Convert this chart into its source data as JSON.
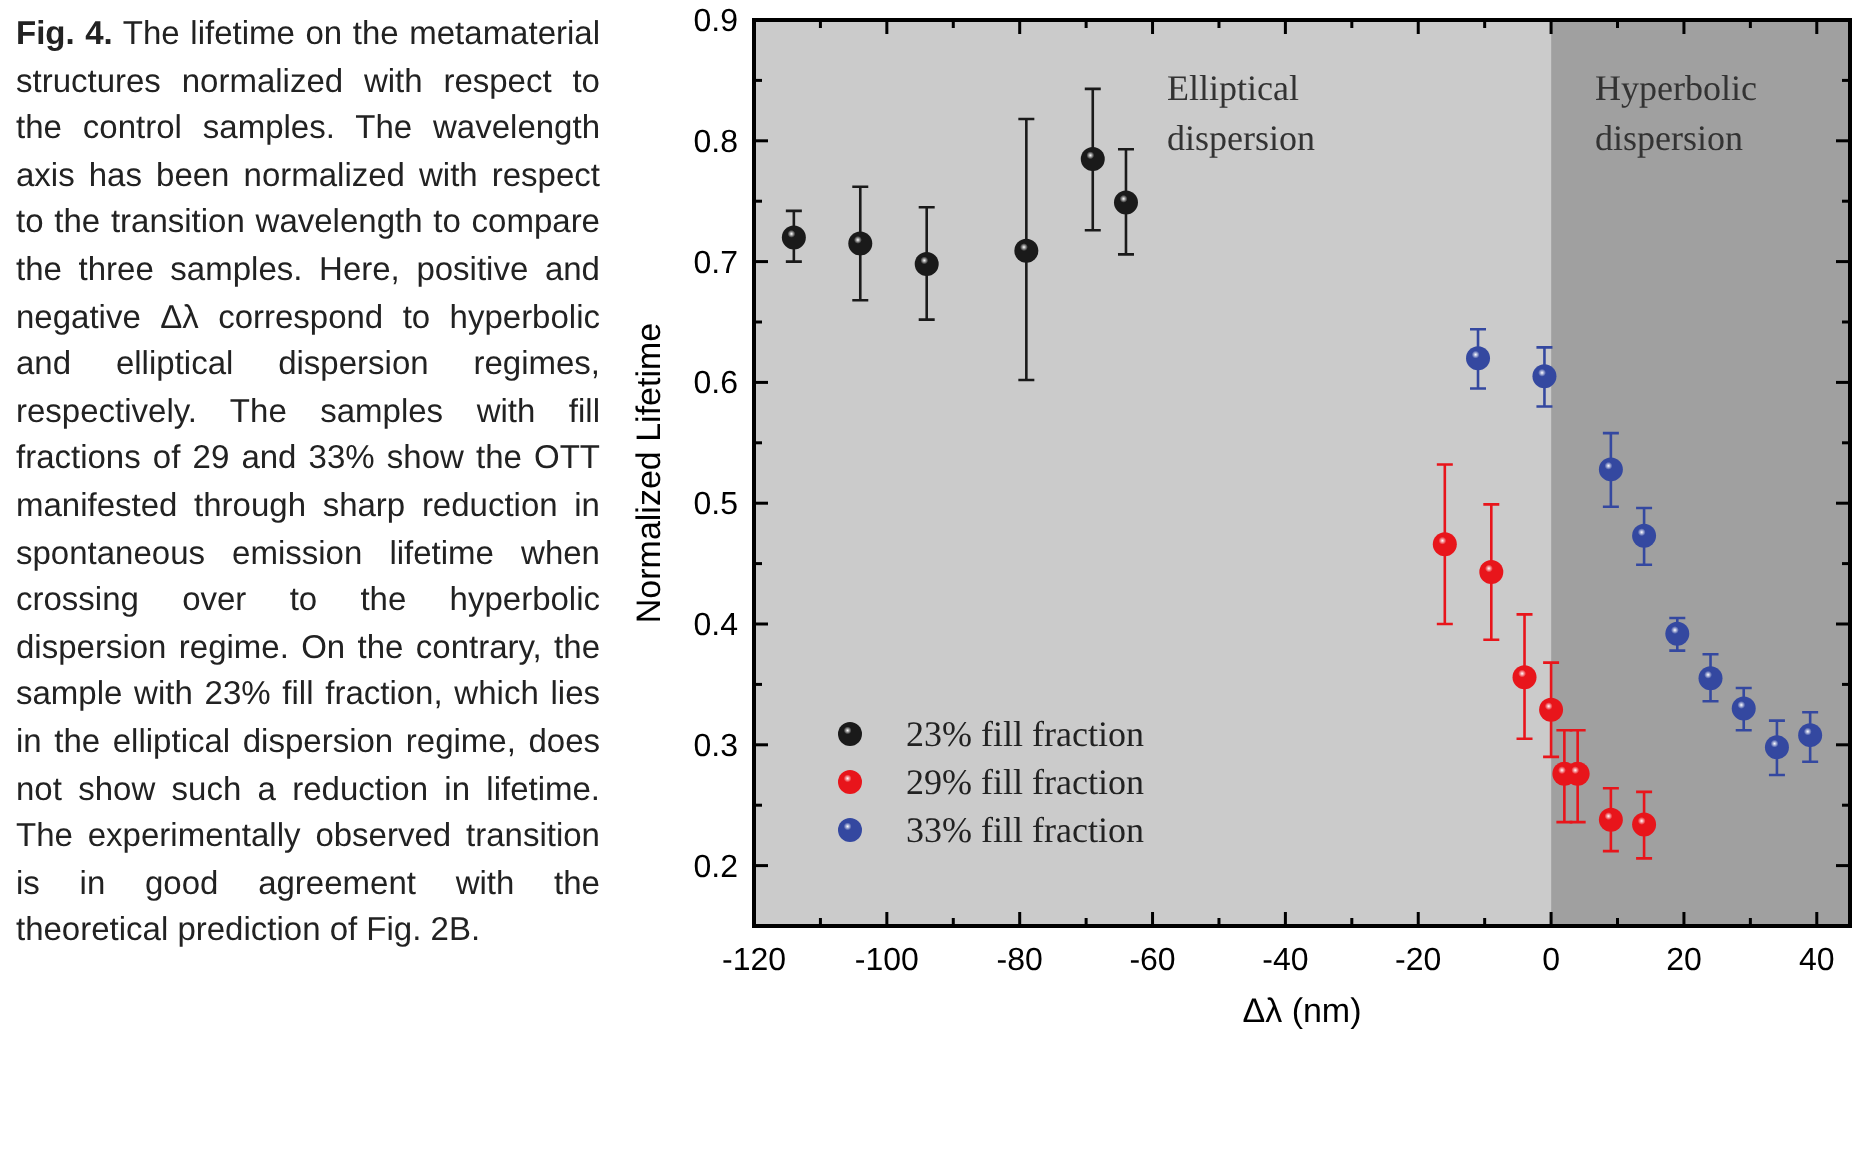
{
  "chart_data": {
    "type": "scatter",
    "xlabel": "Δλ (nm)",
    "ylabel": "Normalized Lifetime",
    "xlim": [
      -120,
      45
    ],
    "ylim": [
      0.15,
      0.9
    ],
    "xticks": [
      -120,
      {
        "value": -110,
        "label": null
      },
      -100,
      {
        "value": -90,
        "label": null
      },
      -80,
      {
        "value": -70,
        "label": null
      },
      -60,
      {
        "value": -50,
        "label": null
      },
      -40,
      {
        "value": -30,
        "label": null
      },
      -20,
      {
        "value": -10,
        "label": null
      },
      0,
      {
        "value": 10,
        "label": null
      },
      20,
      {
        "value": 30,
        "label": null
      },
      40
    ],
    "yticks": [
      {
        "value": 0.2,
        "label": "0.2"
      },
      {
        "value": 0.25,
        "label": null
      },
      {
        "value": 0.3,
        "label": "0.3"
      },
      {
        "value": 0.35,
        "label": null
      },
      {
        "value": 0.4,
        "label": "0.4"
      },
      {
        "value": 0.45,
        "label": null
      },
      {
        "value": 0.5,
        "label": "0.5"
      },
      {
        "value": 0.55,
        "label": null
      },
      {
        "value": 0.6,
        "label": "0.6"
      },
      {
        "value": 0.65,
        "label": null
      },
      {
        "value": 0.7,
        "label": "0.7"
      },
      {
        "value": 0.75,
        "label": null
      },
      {
        "value": 0.8,
        "label": "0.8"
      },
      {
        "value": 0.85,
        "label": null
      },
      {
        "value": 0.9,
        "label": "0.9"
      }
    ],
    "marker": "circle",
    "grid": false,
    "legend": "bottom left",
    "bands": [
      {
        "axis": "x",
        "from": -120,
        "to": 0,
        "label": "Elliptical dispersion",
        "color": "#cbcbcb"
      },
      {
        "axis": "x",
        "from": 0,
        "to": 45,
        "label": "Hyperbolic dispersion",
        "color": "#a0a0a0"
      }
    ],
    "series": [
      {
        "name": "23% fill fraction",
        "color": "#1a1a1a",
        "x": [
          -114,
          -104,
          -94,
          -79,
          -69,
          -64
        ],
        "values": [
          0.72,
          0.715,
          0.698,
          0.709,
          0.785,
          0.749
        ],
        "errors": [
          [
            0.7,
            0.742
          ],
          [
            0.668,
            0.762
          ],
          [
            0.652,
            0.745
          ],
          [
            0.602,
            0.818
          ],
          [
            0.726,
            0.843
          ],
          [
            0.706,
            0.793
          ]
        ]
      },
      {
        "name": "29% fill fraction",
        "color": "#e8151b",
        "x": [
          -16,
          -9,
          -4,
          0,
          2,
          4,
          9,
          14
        ],
        "values": [
          0.466,
          0.443,
          0.356,
          0.329,
          0.276,
          0.276,
          0.238,
          0.234
        ],
        "errors": [
          [
            0.4,
            0.532
          ],
          [
            0.387,
            0.499
          ],
          [
            0.305,
            0.408
          ],
          [
            0.29,
            0.368
          ],
          [
            0.236,
            0.312
          ],
          [
            0.236,
            0.312
          ],
          [
            0.212,
            0.264
          ],
          [
            0.206,
            0.261
          ]
        ]
      },
      {
        "name": "33% fill fraction",
        "color": "#3448a0",
        "x": [
          -11,
          -1,
          9,
          14,
          19,
          24,
          29,
          34,
          39
        ],
        "values": [
          0.62,
          0.605,
          0.528,
          0.473,
          0.392,
          0.355,
          0.33,
          0.298,
          0.308
        ],
        "errors": [
          [
            0.595,
            0.644
          ],
          [
            0.58,
            0.629
          ],
          [
            0.497,
            0.558
          ],
          [
            0.449,
            0.496
          ],
          [
            0.378,
            0.405
          ],
          [
            0.336,
            0.375
          ],
          [
            0.312,
            0.347
          ],
          [
            0.275,
            0.32
          ],
          [
            0.286,
            0.327
          ]
        ]
      }
    ],
    "annotations": [
      "Fig. 4. The lifetime on the metamaterial structures normalized with respect to the control samples. The wavelength axis has been normalized with respect to the transition wavelength to compare the three samples. Here, positive and negative Δλ correspond to hyperbolic and elliptical dispersion regimes, respectively. The samples with fill fractions of 29 and 33% show the OTT manifested through sharp reduction in spontaneous emission lifetime when crossing over to the hyperbolic dispersion regime. On the contrary, the sample with 23% fill fraction, which lies in the elliptical dispersion regime, does not show such a reduction in lifetime. The experimentally observed transition is in good agreement with the theoretical prediction of Fig. 2B."
    ]
  }
}
